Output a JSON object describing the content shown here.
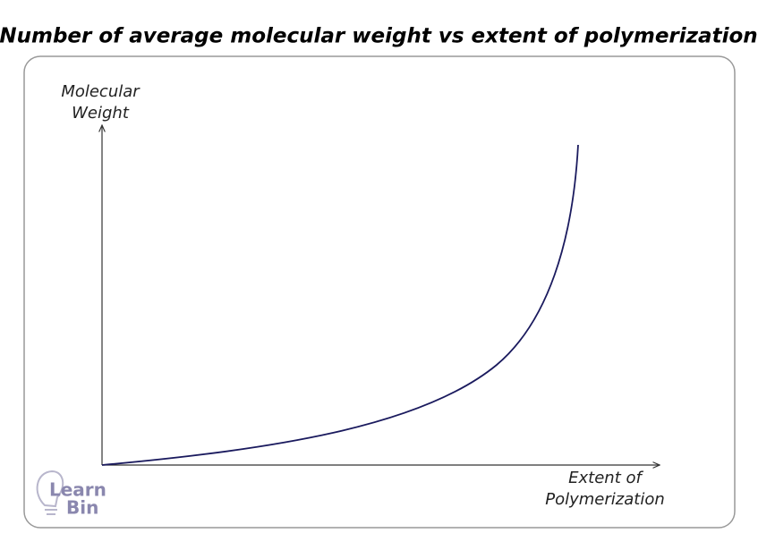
{
  "diagram": {
    "title": "Number of average molecular weight vs extent of polymerization",
    "y_axis_label": [
      "Molecular",
      "Weight"
    ],
    "x_axis_label": [
      "Extent of",
      "Polymerization"
    ],
    "logo": [
      "Learn",
      "Bin"
    ]
  }
}
